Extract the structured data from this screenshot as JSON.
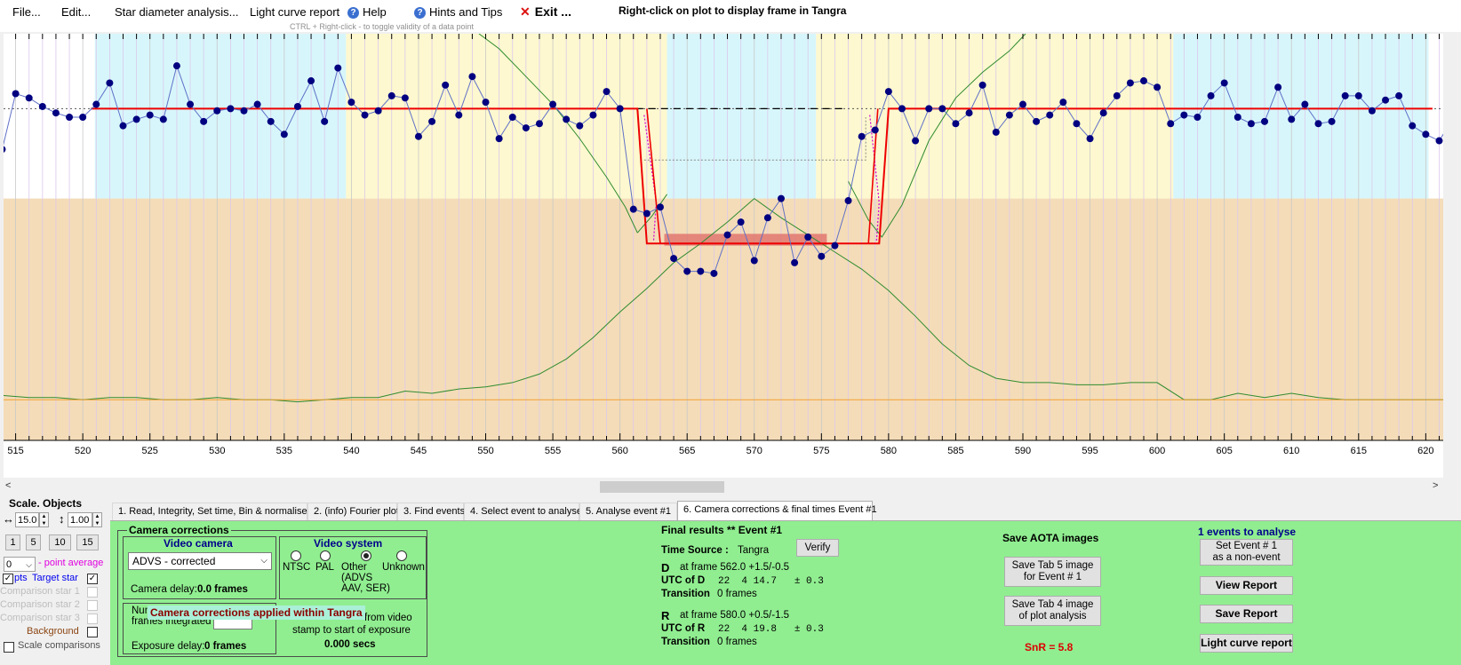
{
  "menu": {
    "file": "File...",
    "edit": "Edit...",
    "star_diameter": "Star diameter analysis...",
    "light_curve_report": "Light curve report",
    "help": "Help",
    "hints": "Hints and Tips",
    "exit": "Exit ...",
    "right_click_msg": "Right-click on plot to display frame in Tangra",
    "ctrl_hint": "CTRL + Right-click  -  to toggle validity of a data point"
  },
  "chart_data": {
    "type": "line",
    "x_ticks": [
      515,
      520,
      525,
      530,
      535,
      540,
      545,
      550,
      555,
      560,
      565,
      570,
      575,
      580,
      585,
      590,
      595,
      600,
      605,
      610,
      615,
      620
    ],
    "xlim": [
      514.1,
      621.3
    ],
    "ylim": [
      -0.55,
      1.35
    ],
    "baseline_level": 1.0,
    "event_level": 0.38,
    "event_D_frame": 562.0,
    "event_R_frame": 580.0,
    "observation_x": [
      514,
      515,
      516,
      517,
      518,
      519,
      520,
      521,
      522,
      523,
      524,
      525,
      526,
      527,
      528,
      529,
      530,
      531,
      532,
      533,
      534,
      535,
      536,
      537,
      538,
      539,
      540,
      541,
      542,
      543,
      544,
      545,
      546,
      547,
      548,
      549,
      550,
      551,
      552,
      553,
      554,
      555,
      556,
      557,
      558,
      559,
      560,
      561,
      562,
      563,
      564,
      565,
      566,
      567,
      568,
      569,
      570,
      571,
      572,
      573,
      574,
      575,
      576,
      577,
      578,
      579,
      580,
      581,
      582,
      583,
      584,
      585,
      586,
      587,
      588,
      589,
      590,
      591,
      592,
      593,
      594,
      595,
      596,
      597,
      598,
      599,
      600,
      601,
      602,
      603,
      604,
      605,
      606,
      607,
      608,
      609,
      610,
      611,
      612,
      613,
      614,
      615,
      616,
      617,
      618,
      619,
      620,
      621,
      622
    ],
    "observation_y": [
      0.81,
      1.07,
      1.05,
      1.01,
      0.98,
      0.96,
      0.96,
      1.02,
      1.12,
      0.92,
      0.95,
      0.97,
      0.95,
      1.2,
      1.02,
      0.94,
      0.99,
      1.0,
      0.99,
      1.02,
      0.94,
      0.88,
      1.01,
      1.13,
      0.94,
      1.19,
      1.03,
      0.97,
      0.99,
      1.06,
      1.05,
      0.87,
      0.94,
      1.11,
      0.97,
      1.15,
      1.03,
      0.86,
      0.96,
      0.91,
      0.93,
      1.02,
      0.95,
      0.92,
      0.97,
      1.08,
      1.0,
      0.53,
      0.51,
      0.54,
      0.3,
      0.24,
      0.24,
      0.23,
      0.41,
      0.47,
      0.29,
      0.49,
      0.58,
      0.28,
      0.4,
      0.31,
      0.36,
      0.57,
      0.87,
      0.9,
      1.08,
      1.0,
      0.85,
      1.0,
      1.0,
      0.93,
      0.98,
      1.11,
      0.89,
      0.97,
      1.02,
      0.94,
      0.97,
      1.03,
      0.93,
      0.86,
      0.98,
      1.06,
      1.12,
      1.13,
      1.1,
      0.93,
      0.97,
      0.96,
      1.06,
      1.12,
      0.96,
      0.93,
      0.94,
      1.1,
      0.95,
      1.02,
      0.93,
      0.94,
      1.06,
      1.06,
      0.99,
      1.04,
      1.06,
      0.92,
      0.88,
      0.85,
      0.95
    ],
    "background_x": [
      514,
      516,
      518,
      520,
      522,
      524,
      526,
      528,
      530,
      532,
      534,
      536,
      538,
      540,
      542,
      544,
      546,
      548,
      550,
      552,
      554,
      556,
      558,
      560,
      562,
      564,
      566,
      568,
      570,
      572,
      574,
      576,
      578,
      580,
      582,
      584,
      586,
      588,
      590,
      592,
      594,
      596,
      598,
      600,
      602,
      604,
      606,
      608,
      610,
      612,
      614,
      616,
      618,
      620,
      622
    ],
    "background_y": [
      -0.34,
      -0.35,
      -0.35,
      -0.36,
      -0.35,
      -0.35,
      -0.36,
      -0.36,
      -0.35,
      -0.36,
      -0.36,
      -0.37,
      -0.36,
      -0.35,
      -0.35,
      -0.32,
      -0.33,
      -0.31,
      -0.3,
      -0.28,
      -0.24,
      -0.17,
      -0.07,
      0.05,
      0.16,
      0.28,
      0.37,
      0.47,
      0.58,
      0.49,
      0.41,
      0.33,
      0.25,
      0.15,
      0.03,
      -0.1,
      -0.2,
      -0.26,
      -0.28,
      -0.28,
      -0.29,
      -0.29,
      -0.28,
      -0.28,
      -0.36,
      -0.36,
      -0.33,
      -0.35,
      -0.33,
      -0.35,
      -0.36,
      -0.36,
      -0.36,
      -0.36,
      -0.36
    ],
    "grid": true
  },
  "left": {
    "title": "Scale.  Objects",
    "scale_value": "15.0",
    "vscale_value": "1.00",
    "scale_buttons": [
      "1",
      "5",
      "10",
      "15"
    ],
    "avg_value": "0",
    "avg_label": "- point average",
    "pts_label": "pts",
    "target_star": "Target star",
    "comp1": "Comparison star 1",
    "comp2": "Comparison star 2",
    "comp3": "Comparison star 3",
    "background": "Background",
    "scale_comparisons": "Scale comparisons"
  },
  "tabs": [
    "1.  Read, Integrity, Set time, Bin & normalise",
    "2. (info)  Fourier plot",
    "3. Find events",
    "4. Select event to analyse",
    "5. Analyse event #1",
    "6. Camera corrections & final times Event #1"
  ],
  "camera": {
    "group_title": "Camera corrections",
    "video_camera_title": "Video camera",
    "camera_value": "ADVS - corrected",
    "camera_delay_label": "Camera delay:",
    "camera_delay_value": "0.0 frames",
    "video_system_title": "Video system",
    "radio_ntsc": "NTSC",
    "radio_pal": "PAL",
    "radio_other": "Other",
    "radio_other_note": "(ADVS\nAAV, SER)",
    "radio_unknown": "Unknown",
    "num_label_short": "Num",
    "frames_integrated": "frames integrated",
    "exposure_delay_label": "Exposure delay:",
    "exposure_delay_value": "0 frames",
    "from_video": "from video",
    "stamp_to_start": "stamp to start of exposure",
    "secs_value": "0.000 secs",
    "applied_banner": "Camera corrections applied within Tangra"
  },
  "final": {
    "title": "Final results  **  Event #1",
    "time_source_label": "Time Source :",
    "time_source_value": "Tangra",
    "verify": "Verify",
    "d_label": "D",
    "d_frame": "at frame 562.0  +1.5/-0.5",
    "utc_d_label": "UTC of D",
    "utc_d_value": "22  4 14.7   ± 0.3",
    "transition_label": "Transition",
    "transition_d": "0 frames",
    "r_label": "R",
    "r_frame": "at frame 580.0  +0.5/-1.5",
    "utc_r_label": "UTC of R",
    "utc_r_value": "22  4 19.8   ± 0.3",
    "transition_r": "0 frames"
  },
  "aota": {
    "title": "Save AOTA images",
    "save_tab5": "Save Tab 5 image\nfor Event # 1",
    "save_tab4": "Save Tab 4 image\nof plot analysis",
    "snr": "SnR = 5.8"
  },
  "report": {
    "events_to_analyse": "1  events to analyse",
    "set_event": "Set Event # 1\nas a non-event",
    "view_report": "View Report",
    "save_report": "Save Report",
    "light_curve_report": "Light curve report"
  },
  "colors": {
    "panel_green": "#90ee90",
    "observation": "#000080",
    "fit_red": "#ee0000",
    "background_line": "#2e8b2e",
    "region_cyan": "#d7f6fb",
    "region_yellow": "#fdf8cf",
    "region_tan": "#f4dcb8"
  }
}
